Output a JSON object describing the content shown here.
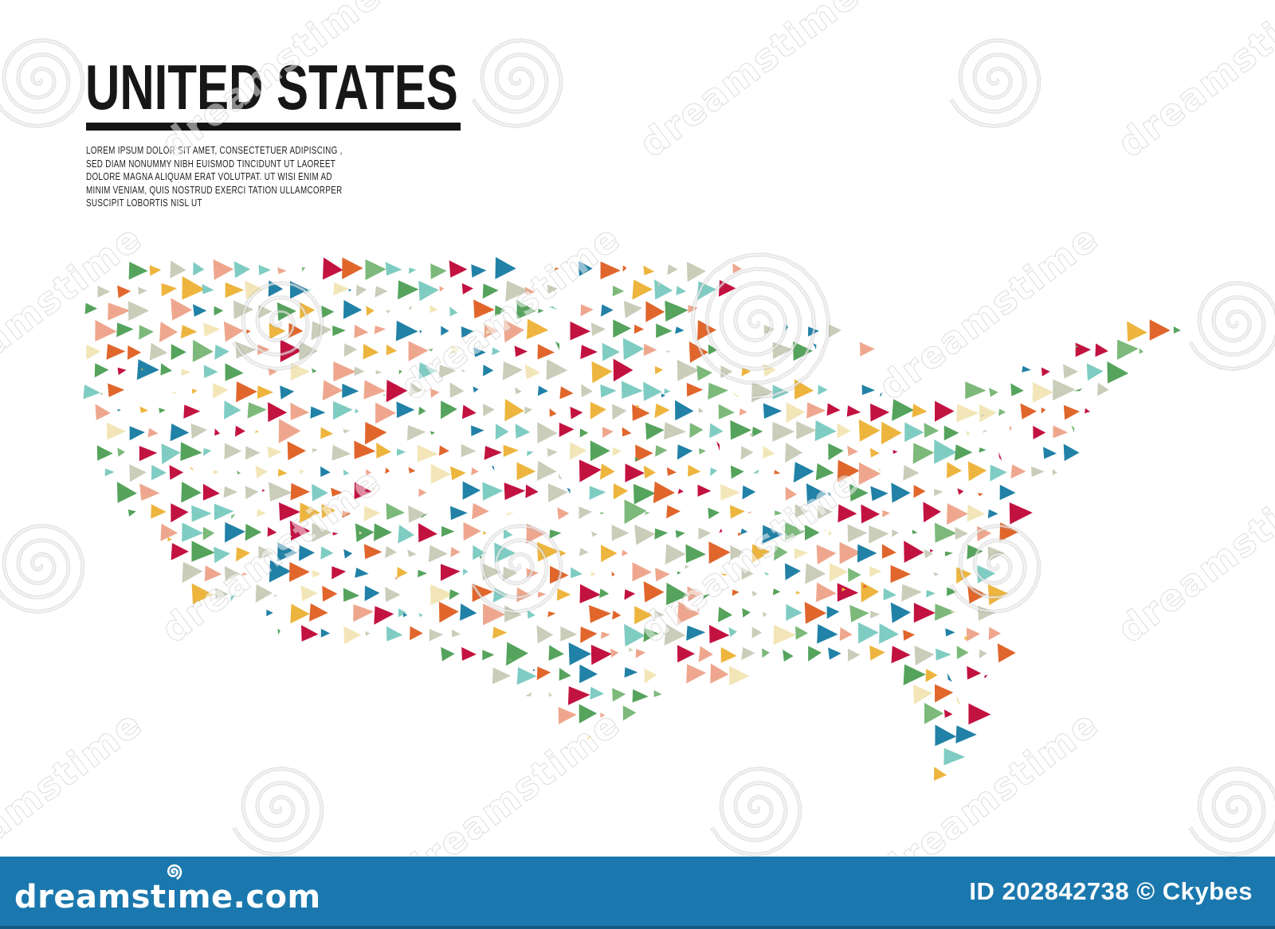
{
  "header": {
    "title": "UNITED STATES",
    "paragraph_lines": [
      "LOREM IPSUM DOLOR SIT AMET, CONSECTETUER ADIPISCING ,",
      "SED DIAM NONUMMY NIBH EUISMOD TINCIDUNT UT LAOREET",
      "DOLORE MAGNA ALIQUAM ERAT VOLUTPAT. UT WISI ENIM AD",
      "MINIM VENIAM, QUIS NOSTRUD EXERCI TATION ULLAMCORPER",
      "SUSCIPIT LOBORTIS NISL UT"
    ],
    "title_color": "#171717",
    "rule_color": "#141414"
  },
  "map": {
    "palette": [
      "#c9cdb9",
      "#55a35c",
      "#7cb97a",
      "#2181a6",
      "#7fccc3",
      "#c21240",
      "#e0662c",
      "#edb53e",
      "#f2e6b8",
      "#eea78e"
    ],
    "background": "#ffffff"
  },
  "watermark": {
    "text": "dreamstime"
  },
  "footer": {
    "bar_color": "#1b78ae",
    "site": "dreamstime.com",
    "credit": "ID 202842738 © Ckybes",
    "text_color": "#ffffff"
  }
}
